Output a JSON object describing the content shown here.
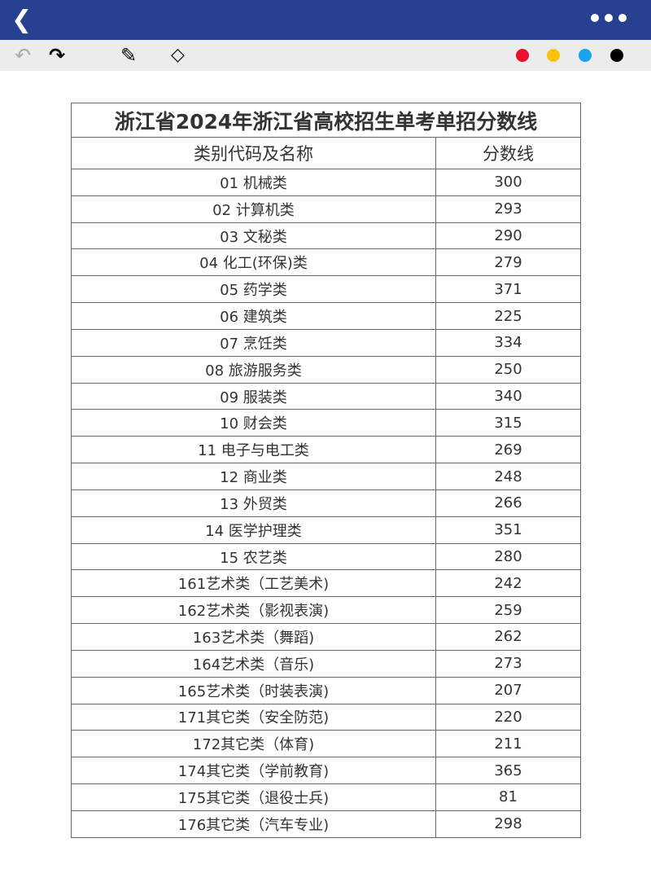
{
  "topbar": {
    "back_icon": "chevron-left-icon",
    "more_icon": "ellipsis-icon"
  },
  "toolbar": {
    "undo_icon": "undo-icon",
    "redo_icon": "redo-icon",
    "pencil_icon": "pencil-icon",
    "eraser_icon": "eraser-icon",
    "colors": [
      "#e8102a",
      "#fdc20b",
      "#19a3f0",
      "#000000"
    ]
  },
  "table": {
    "title": "浙江省2024年浙江省高校招生单考单招分数线",
    "headers": [
      "类别代码及名称",
      "分数线"
    ],
    "rows": [
      [
        "01 机械类",
        "300"
      ],
      [
        "02 计算机类",
        "293"
      ],
      [
        "03 文秘类",
        "290"
      ],
      [
        "04 化工(环保)类",
        "279"
      ],
      [
        "05 药学类",
        "371"
      ],
      [
        "06 建筑类",
        "225"
      ],
      [
        "07 烹饪类",
        "334"
      ],
      [
        "08 旅游服务类",
        "250"
      ],
      [
        "09 服装类",
        "340"
      ],
      [
        "10 财会类",
        "315"
      ],
      [
        "11 电子与电工类",
        "269"
      ],
      [
        "12 商业类",
        "248"
      ],
      [
        "13 外贸类",
        "266"
      ],
      [
        "14 医学护理类",
        "351"
      ],
      [
        "15 农艺类",
        "280"
      ],
      [
        "161艺术类（工艺美术)",
        "242"
      ],
      [
        "162艺术类（影视表演)",
        "259"
      ],
      [
        "163艺术类（舞蹈)",
        "262"
      ],
      [
        "164艺术类（音乐)",
        "273"
      ],
      [
        "165艺术类（时装表演)",
        "207"
      ],
      [
        "171其它类（安全防范)",
        "220"
      ],
      [
        "172其它类（体育)",
        "211"
      ],
      [
        "174其它类（学前教育)",
        "365"
      ],
      [
        "175其它类（退役士兵)",
        "81"
      ],
      [
        "176其它类（汽车专业)",
        "298"
      ]
    ]
  }
}
